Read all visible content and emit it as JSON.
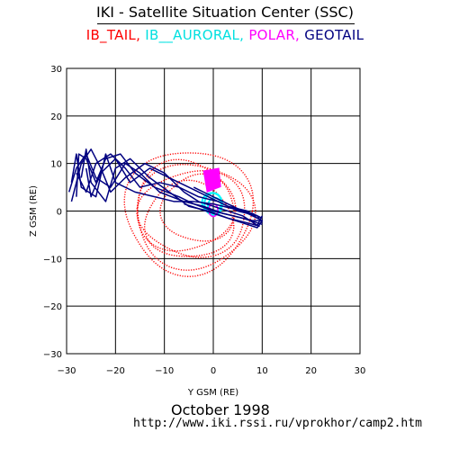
{
  "header": {
    "title": "IKI - Satellite Situation Center (SSC)",
    "legend": [
      {
        "label": "IB_TAIL,",
        "color": "#ff0000"
      },
      {
        "label": "IB__AURORAL,",
        "color": "#00ffff"
      },
      {
        "label": "POLAR,",
        "color": "#ff00ff"
      },
      {
        "label": "GEOTAIL",
        "color": "#000080"
      }
    ]
  },
  "chart_data": {
    "type": "line",
    "xlabel": "Y GSM (RE)",
    "ylabel": "Z GSM (RE)",
    "xlim": [
      -30,
      30
    ],
    "ylim": [
      -30,
      30
    ],
    "xticks": [
      -30,
      -20,
      -10,
      0,
      10,
      20,
      30
    ],
    "yticks": [
      -30,
      -20,
      -10,
      0,
      10,
      20,
      30
    ],
    "grid": true,
    "series": [
      {
        "name": "IB_TAIL",
        "color": "#ff0000",
        "shape": "dotted-loops",
        "loops": [
          {
            "cx": -5,
            "cy": 0,
            "rx": 13,
            "ry": 13
          },
          {
            "cx": -4,
            "cy": -1,
            "rx": 12,
            "ry": 11
          },
          {
            "cx": -6,
            "cy": 1,
            "rx": 10,
            "ry": 9.5
          },
          {
            "cx": -5,
            "cy": -2,
            "rx": 9,
            "ry": 8
          },
          {
            "cx": -3,
            "cy": 0.5,
            "rx": 7.5,
            "ry": 7
          },
          {
            "cx": -4,
            "cy": -0.5,
            "rx": 11,
            "ry": 9
          }
        ]
      },
      {
        "name": "IB__AURORAL",
        "color": "#00ffff",
        "shape": "loop",
        "loops": [
          {
            "cx": 0,
            "cy": 1.5,
            "rx": 1.8,
            "ry": 2.3
          },
          {
            "cx": 0.3,
            "cy": 1,
            "rx": 1.4,
            "ry": 1.8
          },
          {
            "cx": -0.3,
            "cy": 1.8,
            "rx": 2.0,
            "ry": 2.0
          }
        ]
      },
      {
        "name": "POLAR",
        "color": "#ff00ff",
        "shape": "band",
        "x_range": [
          -2,
          1.5
        ],
        "y_range": [
          4,
          9
        ]
      },
      {
        "name": "GEOTAIL",
        "color": "#000080",
        "shape": "lines",
        "paths": [
          [
            [
              -29,
              2
            ],
            [
              -27,
              10
            ],
            [
              -25,
              13
            ],
            [
              -23,
              9
            ],
            [
              -21,
              4
            ],
            [
              -18,
              7
            ],
            [
              -14,
              10
            ],
            [
              -10,
              8
            ],
            [
              -6,
              4
            ],
            [
              -3,
              2
            ],
            [
              0,
              1
            ],
            [
              3,
              0
            ],
            [
              6,
              -1
            ],
            [
              9,
              -3
            ],
            [
              10,
              -1
            ]
          ],
          [
            [
              -28,
              3
            ],
            [
              -27.5,
              12
            ],
            [
              -26,
              11
            ],
            [
              -24,
              6
            ],
            [
              -22,
              11
            ],
            [
              -19,
              12
            ],
            [
              -16,
              8
            ],
            [
              -12,
              5
            ],
            [
              -7,
              3
            ],
            [
              -4,
              1.5
            ],
            [
              0,
              0
            ],
            [
              4,
              -1
            ],
            [
              8,
              -2
            ],
            [
              10,
              -2
            ]
          ],
          [
            [
              -27,
              7
            ],
            [
              -26,
              13
            ],
            [
              -25,
              6
            ],
            [
              -22,
              2
            ],
            [
              -20,
              9
            ],
            [
              -17,
              11
            ],
            [
              -13,
              7
            ],
            [
              -9,
              4
            ],
            [
              -5,
              1
            ],
            [
              -1,
              0
            ],
            [
              3,
              -1.5
            ],
            [
              7,
              -2.5
            ],
            [
              9.5,
              -3.2
            ]
          ],
          [
            [
              -29,
              6
            ],
            [
              -28,
              12
            ],
            [
              -27,
              5
            ],
            [
              -24,
              3
            ],
            [
              -22,
              12
            ],
            [
              -20,
              6
            ],
            [
              -16,
              4
            ],
            [
              -12,
              3
            ],
            [
              -8,
              2
            ],
            [
              -4,
              2
            ],
            [
              0,
              1.5
            ],
            [
              4,
              0.5
            ],
            [
              8,
              -0.5
            ],
            [
              10,
              -1.5
            ]
          ],
          [
            [
              -28,
              8
            ],
            [
              -26,
              4
            ],
            [
              -24,
              10
            ],
            [
              -21,
              12
            ],
            [
              -18,
              9
            ],
            [
              -15,
              5
            ],
            [
              -11,
              6
            ],
            [
              -7,
              5
            ],
            [
              -3,
              3
            ],
            [
              1,
              2
            ],
            [
              5,
              0
            ],
            [
              9,
              -1
            ],
            [
              10,
              -2.5
            ]
          ],
          [
            [
              -26,
              9
            ],
            [
              -25,
              3
            ],
            [
              -23,
              8
            ],
            [
              -20,
              11
            ],
            [
              -17,
              6
            ],
            [
              -13,
              9
            ],
            [
              -9,
              7
            ],
            [
              -5,
              5
            ],
            [
              -1,
              3
            ],
            [
              3,
              1
            ],
            [
              7,
              0
            ],
            [
              9,
              -1.5
            ]
          ],
          [
            [
              -29.5,
              4
            ],
            [
              -28,
              9
            ],
            [
              -26,
              12
            ],
            [
              -24,
              7
            ],
            [
              -21,
              5
            ],
            [
              -18,
              10
            ],
            [
              -15,
              8
            ],
            [
              -11,
              4
            ],
            [
              -6,
              2
            ],
            [
              -2,
              1
            ],
            [
              2,
              -0.5
            ],
            [
              6,
              -1.5
            ],
            [
              10,
              -2.8
            ]
          ],
          [
            [
              -4,
              5
            ],
            [
              -2,
              4
            ],
            [
              0,
              3
            ],
            [
              2,
              2
            ],
            [
              4,
              1
            ],
            [
              6,
              0
            ],
            [
              8,
              -1
            ],
            [
              10,
              -2
            ],
            [
              9,
              -3.5
            ],
            [
              6,
              -2.5
            ],
            [
              3,
              -1.5
            ],
            [
              0,
              -0.5
            ],
            [
              -3,
              0.5
            ],
            [
              -6,
              1.5
            ]
          ]
        ]
      }
    ]
  },
  "footer": {
    "month": "October   1998",
    "url": "http://www.iki.rssi.ru/vprokhor/camp2.htm"
  }
}
